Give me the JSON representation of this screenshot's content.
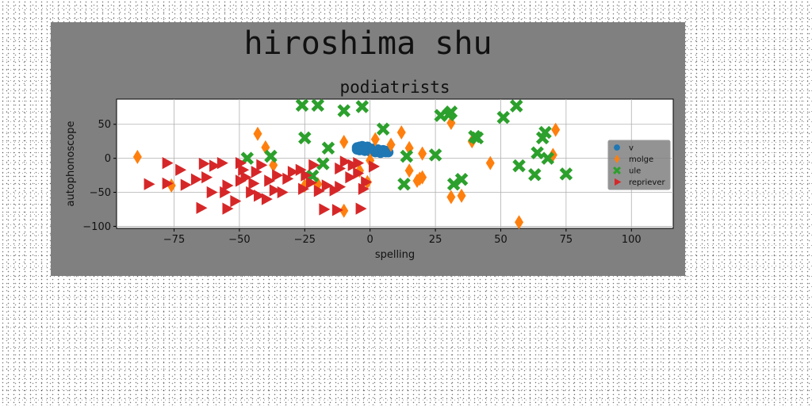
{
  "suptitle": "hiroshima shu",
  "chart_data": {
    "type": "scatter",
    "title": "podiatrists",
    "xlabel": "spelling",
    "ylabel": "autophonoscope",
    "xlim": [
      -97,
      116
    ],
    "ylim": [
      -103,
      87
    ],
    "xticks": [
      -75,
      -50,
      -25,
      0,
      25,
      50,
      75,
      100
    ],
    "yticks": [
      50,
      0,
      -50,
      -100
    ],
    "xtick_labels": [
      "−75",
      "−50",
      "−25",
      "0",
      "25",
      "50",
      "75",
      "100"
    ],
    "ytick_labels": [
      "50",
      "0",
      "−50",
      "−100"
    ],
    "grid": true,
    "legend_position": "right",
    "series": [
      {
        "name": "v",
        "marker": "circle",
        "color": "#1f77b4",
        "points": [
          [
            -5,
            16
          ],
          [
            -4,
            17
          ],
          [
            -3,
            15
          ],
          [
            -2,
            14
          ],
          [
            -1,
            15
          ],
          [
            0,
            13
          ],
          [
            1,
            12
          ],
          [
            2,
            11
          ],
          [
            3,
            10
          ],
          [
            4,
            11
          ],
          [
            5,
            10
          ],
          [
            6,
            9
          ],
          [
            7,
            9
          ],
          [
            -4,
            12
          ],
          [
            -2,
            11
          ],
          [
            0,
            10
          ],
          [
            2,
            9
          ],
          [
            4,
            8
          ],
          [
            -3,
            18
          ],
          [
            -1,
            17
          ],
          [
            1,
            14
          ],
          [
            3,
            13
          ],
          [
            5,
            12
          ],
          [
            -5,
            13
          ],
          [
            6,
            11
          ]
        ]
      },
      {
        "name": "molge",
        "marker": "thin_diamond",
        "color": "#ff7f0e",
        "points": [
          [
            -89,
            2
          ],
          [
            -76,
            -40
          ],
          [
            -43,
            36
          ],
          [
            -40,
            16
          ],
          [
            -37,
            -10
          ],
          [
            -25,
            -40
          ],
          [
            -20,
            -38
          ],
          [
            -10,
            24
          ],
          [
            -10,
            -77
          ],
          [
            2,
            28
          ],
          [
            -1,
            -35
          ],
          [
            0,
            -3
          ],
          [
            8,
            20
          ],
          [
            12,
            38
          ],
          [
            15,
            15
          ],
          [
            15,
            -18
          ],
          [
            18,
            -33
          ],
          [
            20,
            -28
          ],
          [
            20,
            7
          ],
          [
            31,
            52
          ],
          [
            31,
            -57
          ],
          [
            35,
            -55
          ],
          [
            39,
            25
          ],
          [
            46,
            -7
          ],
          [
            57,
            -94
          ],
          [
            71,
            42
          ],
          [
            70,
            5
          ],
          [
            19,
            -30
          ],
          [
            -4,
            -18
          ]
        ]
      },
      {
        "name": "ule",
        "marker": "x",
        "color": "#2ca02c",
        "points": [
          [
            -26,
            78
          ],
          [
            -20,
            78
          ],
          [
            -10,
            70
          ],
          [
            -3,
            76
          ],
          [
            5,
            43
          ],
          [
            27,
            63
          ],
          [
            30,
            64
          ],
          [
            31,
            68
          ],
          [
            41,
            30
          ],
          [
            40,
            32
          ],
          [
            51,
            60
          ],
          [
            56,
            77
          ],
          [
            64,
            8
          ],
          [
            66,
            30
          ],
          [
            67,
            38
          ],
          [
            68,
            0
          ],
          [
            63,
            -24
          ],
          [
            75,
            -23
          ],
          [
            -25,
            30
          ],
          [
            -18,
            -8
          ],
          [
            -16,
            15
          ],
          [
            -38,
            3
          ],
          [
            -47,
            0
          ],
          [
            -22,
            -26
          ],
          [
            14,
            3
          ],
          [
            13,
            -38
          ],
          [
            25,
            5
          ],
          [
            32,
            -38
          ],
          [
            35,
            -31
          ],
          [
            57,
            -11
          ]
        ]
      },
      {
        "name": "repriever",
        "marker": "triangle_right",
        "color": "#d62728",
        "points": [
          [
            -78,
            -7
          ],
          [
            -73,
            -17
          ],
          [
            -85,
            -38
          ],
          [
            -78,
            -37
          ],
          [
            -71,
            -39
          ],
          [
            -67,
            -31
          ],
          [
            -64,
            -8
          ],
          [
            -60,
            -11
          ],
          [
            -57,
            -7
          ],
          [
            -63,
            -28
          ],
          [
            -61,
            -50
          ],
          [
            -56,
            -50
          ],
          [
            -52,
            -63
          ],
          [
            -65,
            -73
          ],
          [
            -55,
            -74
          ],
          [
            -49,
            -17
          ],
          [
            -48,
            -28
          ],
          [
            -50,
            -33
          ],
          [
            -45,
            -37
          ],
          [
            -46,
            -50
          ],
          [
            -43,
            -55
          ],
          [
            -40,
            -60
          ],
          [
            -37,
            -47
          ],
          [
            -34,
            -50
          ],
          [
            -39,
            -33
          ],
          [
            -36,
            -25
          ],
          [
            -32,
            -30
          ],
          [
            -42,
            -10
          ],
          [
            -44,
            -20
          ],
          [
            -27,
            -17
          ],
          [
            -22,
            -10
          ],
          [
            -25,
            -25
          ],
          [
            -23,
            -36
          ],
          [
            -20,
            -48
          ],
          [
            -17,
            -40
          ],
          [
            -14,
            -47
          ],
          [
            -12,
            -42
          ],
          [
            -18,
            -75
          ],
          [
            -13,
            -76
          ],
          [
            -4,
            -74
          ],
          [
            -8,
            -28
          ],
          [
            -5,
            -22
          ],
          [
            -3,
            -45
          ],
          [
            -2,
            -35
          ],
          [
            1,
            -12
          ],
          [
            -12,
            -15
          ],
          [
            -10,
            -5
          ],
          [
            -7,
            -10
          ],
          [
            -5,
            -7
          ],
          [
            -50,
            -7
          ],
          [
            -30,
            -20
          ],
          [
            -26,
            -45
          ],
          [
            -55,
            -40
          ]
        ]
      }
    ]
  }
}
